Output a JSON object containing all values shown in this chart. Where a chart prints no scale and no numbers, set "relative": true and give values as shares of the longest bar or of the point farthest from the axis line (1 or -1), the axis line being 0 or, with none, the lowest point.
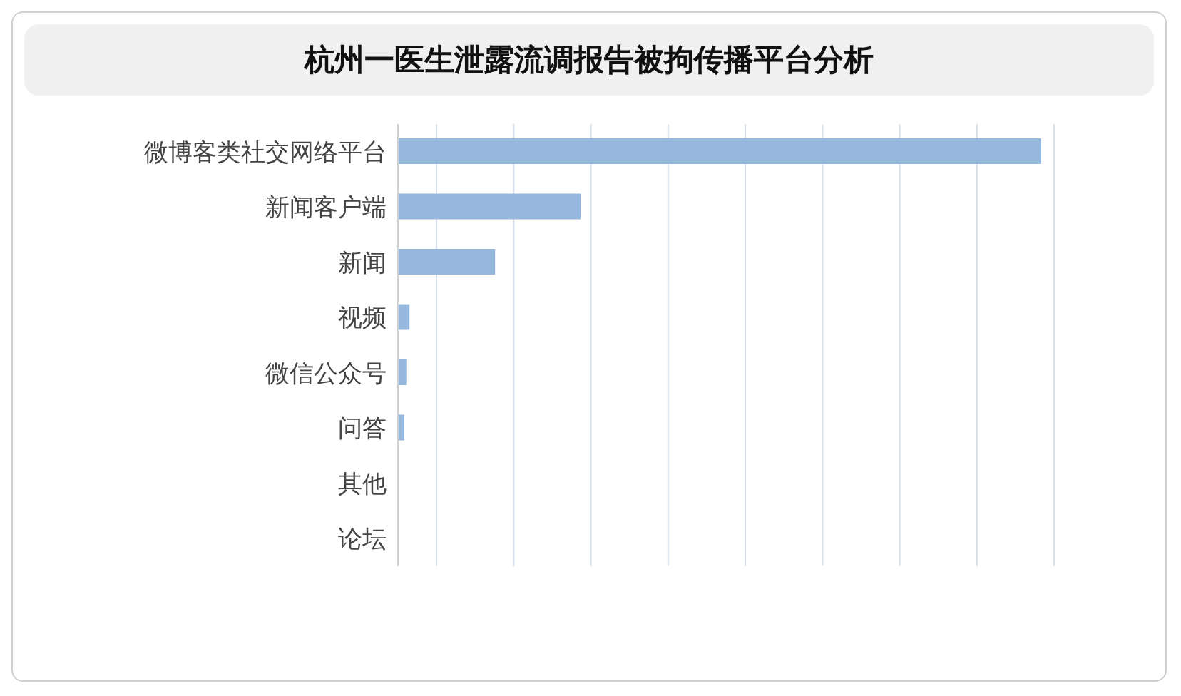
{
  "chart_data": {
    "type": "bar",
    "orientation": "horizontal",
    "relative": true,
    "title": "杭州一医生泄露流调报告被拘传播平台分析",
    "categories": [
      "微博客类社交网络平台",
      "新闻客户端",
      "新闻",
      "视频",
      "微信公众号",
      "问答",
      "其他",
      "论坛"
    ],
    "values": [
      1,
      0.284,
      0.151,
      0.018,
      0.013,
      0.01,
      0,
      0
    ],
    "color": "#95b8dc",
    "grid": "x"
  }
}
